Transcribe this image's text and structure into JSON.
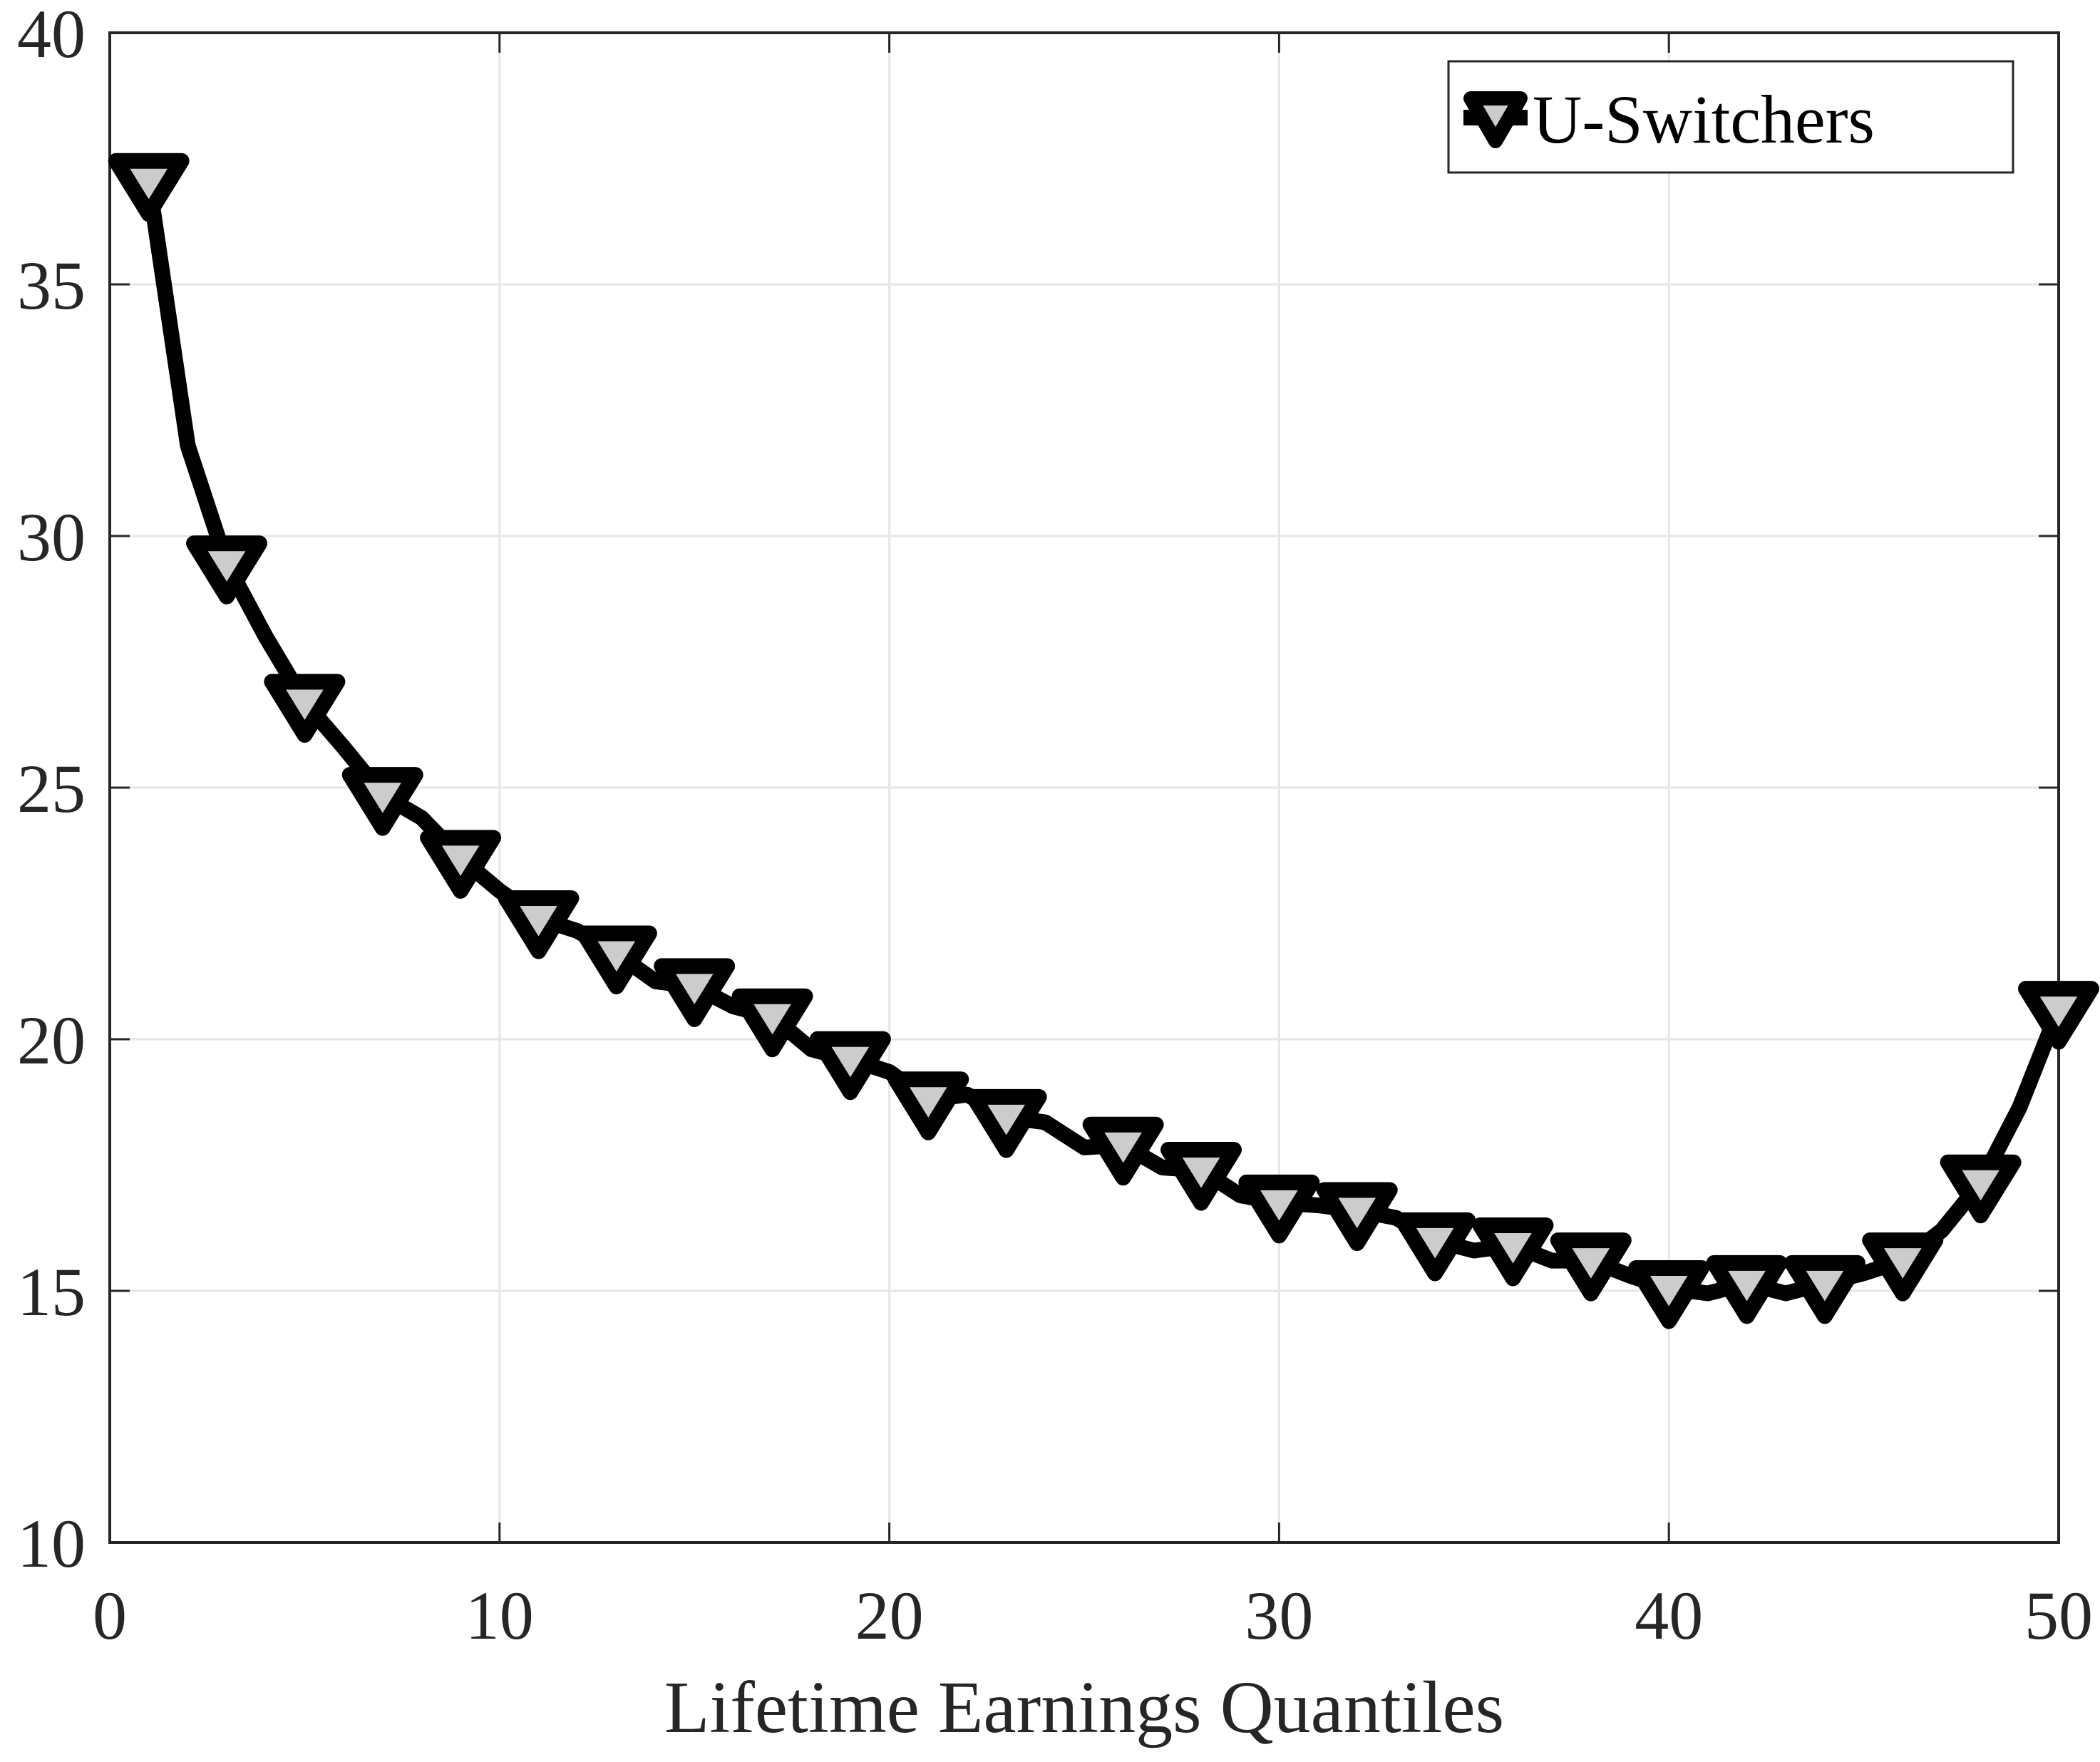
{
  "chart_data": {
    "type": "line",
    "title": "",
    "xlabel": "Lifetime Earnings Quantiles",
    "ylabel": "",
    "xlim": [
      0,
      50
    ],
    "ylim": [
      10,
      40
    ],
    "xticks": [
      0,
      10,
      20,
      30,
      40,
      50
    ],
    "yticks": [
      10,
      15,
      20,
      25,
      30,
      35,
      40
    ],
    "grid": true,
    "legend_position": "upper right",
    "series": [
      {
        "name": "U-Switchers",
        "marker": "downward-triangle",
        "line_color": "#000000",
        "marker_face_color": "#cccccc",
        "marker_indices": [
          1,
          3,
          5,
          7,
          9,
          11,
          13,
          15,
          17,
          19,
          21,
          23,
          26,
          28,
          30,
          32,
          34,
          36,
          38,
          40,
          42,
          44,
          46,
          48,
          50
        ],
        "x": [
          1,
          2,
          3,
          4,
          5,
          6,
          7,
          8,
          9,
          10,
          11,
          12,
          13,
          14,
          15,
          16,
          17,
          18,
          19,
          20,
          21,
          22,
          23,
          24,
          25,
          26,
          27,
          28,
          29,
          30,
          31,
          32,
          33,
          34,
          35,
          36,
          37,
          38,
          39,
          40,
          41,
          42,
          43,
          44,
          45,
          46,
          47,
          48,
          49,
          50
        ],
        "values": [
          37.05,
          31.8,
          29.45,
          28.0,
          26.7,
          25.8,
          24.85,
          24.4,
          23.6,
          22.95,
          22.4,
          22.15,
          21.7,
          21.15,
          21.05,
          20.65,
          20.45,
          19.8,
          19.6,
          19.35,
          18.8,
          18.9,
          18.45,
          18.35,
          17.85,
          17.9,
          17.45,
          17.4,
          16.9,
          16.75,
          16.7,
          16.6,
          16.45,
          16.0,
          15.8,
          15.9,
          15.6,
          15.6,
          15.3,
          15.05,
          14.95,
          15.15,
          14.95,
          15.15,
          15.35,
          15.6,
          16.2,
          17.15,
          18.65,
          20.6
        ]
      }
    ]
  },
  "axes": {
    "x_tick_labels": [
      "0",
      "10",
      "20",
      "30",
      "40",
      "50"
    ],
    "y_tick_labels": [
      "10",
      "15",
      "20",
      "25",
      "30",
      "35",
      "40"
    ],
    "xlabel": "Lifetime Earnings Quantiles"
  },
  "legend": {
    "label": "U-Switchers"
  },
  "colors": {
    "line": "#000000",
    "marker_face": "#cccccc",
    "grid": "#e6e6e6",
    "axis": "#262626"
  }
}
